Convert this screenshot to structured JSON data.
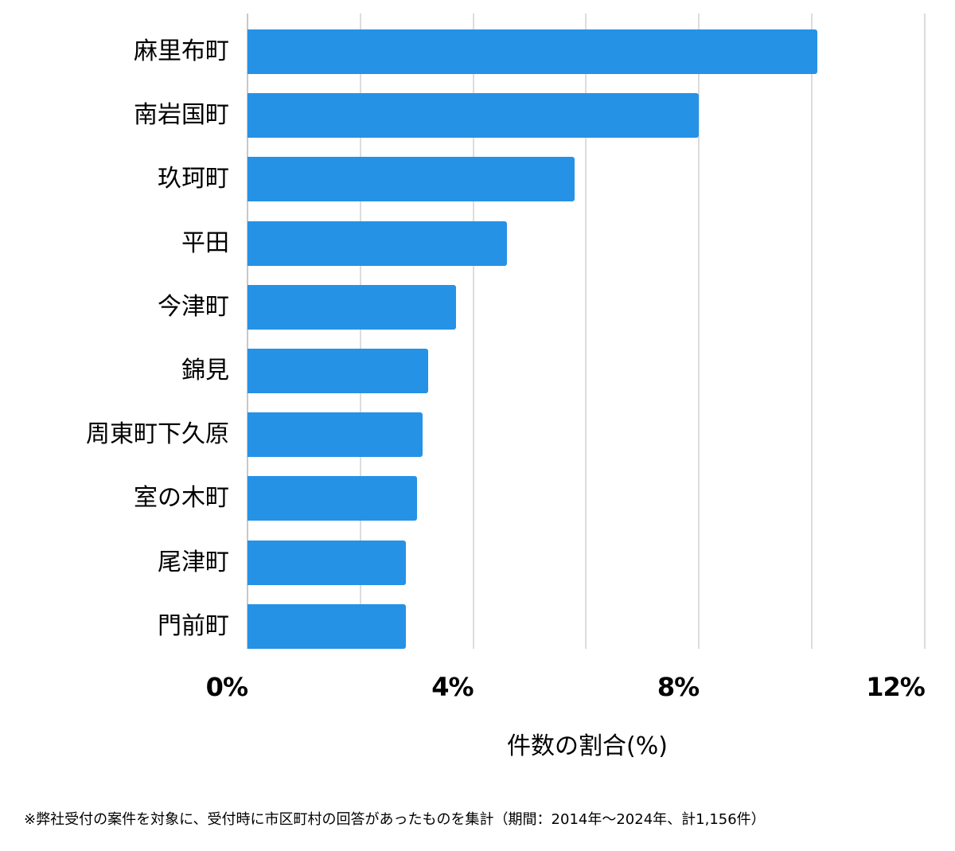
{
  "chart_data": {
    "type": "bar",
    "orientation": "horizontal",
    "categories": [
      "麻里布町",
      "南岩国町",
      "玖珂町",
      "平田",
      "今津町",
      "錦見",
      "周東町下久原",
      "室の木町",
      "尾津町",
      "門前町"
    ],
    "values": [
      10.1,
      8.0,
      5.8,
      4.6,
      3.7,
      3.2,
      3.1,
      3.0,
      2.8,
      2.8
    ],
    "title": "",
    "xlabel": "件数の割合(%)",
    "ylabel": "",
    "xlim": [
      0,
      12
    ],
    "xticks": [
      "0%",
      "4%",
      "8%",
      "12%"
    ],
    "grid": true,
    "grid_step": 2,
    "bar_color": "#2592e6",
    "legend": null
  },
  "labels": {
    "categories": [
      "麻里布町",
      "南岩国町",
      "玖珂町",
      "平田",
      "今津町",
      "錦見",
      "周東町下久原",
      "室の木町",
      "尾津町",
      "門前町"
    ],
    "ticks": [
      "0%",
      "4%",
      "8%",
      "12%"
    ],
    "xlabel": "件数の割合(%)",
    "footnote": "※弊社受付の案件を対象に、受付時に市区町村の回答があったものを集計（期間：2014年～2024年、計1,156件）"
  }
}
